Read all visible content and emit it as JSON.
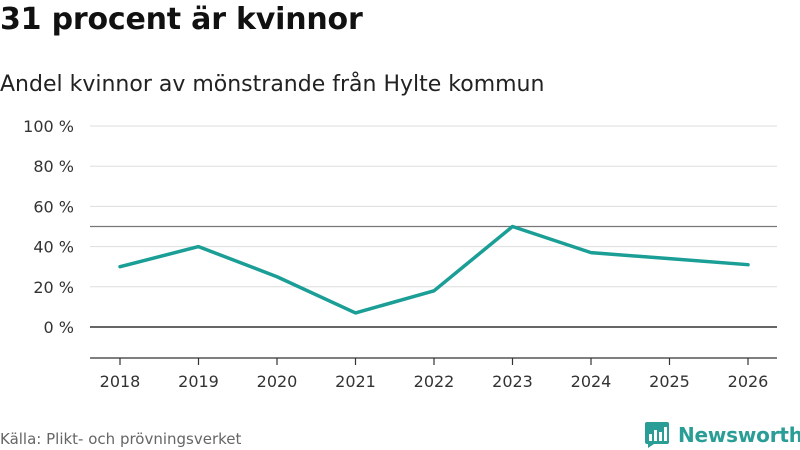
{
  "header": {
    "title": "31 procent är kvinnor",
    "subtitle": "Andel kvinnor av mönstrande från Hylte kommun"
  },
  "footer": {
    "source": "Källa: Plikt- och prövningsverket",
    "brand": "Newsworthy"
  },
  "colors": {
    "line": "#1a9e96",
    "brand": "#2a9d96",
    "grid": "#dddddd",
    "axis": "#333333",
    "reference": "#777777"
  },
  "chart_data": {
    "type": "line",
    "title": "31 procent är kvinnor",
    "subtitle": "Andel kvinnor av mönstrande från Hylte kommun",
    "xlabel": "",
    "ylabel": "",
    "x": [
      "2018",
      "2019",
      "2020",
      "2021",
      "2022",
      "2023",
      "2024",
      "2025",
      "2026"
    ],
    "series": [
      {
        "name": "Andel kvinnor",
        "values": [
          30,
          40,
          25,
          7,
          18,
          50,
          37,
          34,
          31
        ]
      }
    ],
    "ylim": [
      0,
      100
    ],
    "yticks": [
      0,
      20,
      40,
      60,
      80,
      100
    ],
    "ytick_labels": [
      "0 %",
      "20 %",
      "40 %",
      "60 %",
      "80 %",
      "100 %"
    ],
    "reference_line": 50,
    "grid": true,
    "legend": "none"
  }
}
